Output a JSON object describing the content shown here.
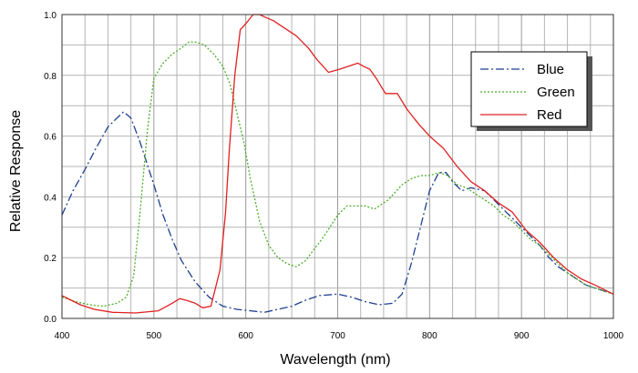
{
  "chart_data": {
    "type": "line",
    "title": "",
    "xlabel": "Wavelength (nm)",
    "ylabel": "Relative Response",
    "xlim": [
      400,
      1000
    ],
    "ylim": [
      0,
      1.0
    ],
    "x_ticks": [
      400,
      500,
      600,
      700,
      800,
      900,
      1000
    ],
    "x_tick_labels": [
      "400",
      "500",
      "600",
      "700",
      "800",
      "900",
      "1000"
    ],
    "y_ticks": [
      0,
      0.2,
      0.4,
      0.6,
      0.8,
      1.0
    ],
    "y_tick_labels": [
      "0.0",
      "0.2",
      "0.4",
      "0.6",
      "0.8",
      "1.0"
    ],
    "grid": true,
    "legend_position": "top-right",
    "series": [
      {
        "name": "Blue",
        "color": "#1f3f8f",
        "dash": "dash-dot",
        "x": [
          400,
          412,
          425,
          437,
          450,
          460,
          467,
          475,
          485,
          500,
          510,
          520,
          530,
          545,
          560,
          575,
          590,
          605,
          620,
          635,
          650,
          665,
          680,
          700,
          715,
          730,
          745,
          760,
          770,
          780,
          790,
          800,
          810,
          818,
          825,
          835,
          845,
          860,
          870,
          880,
          890,
          900,
          910,
          920,
          930,
          940,
          950,
          960,
          970,
          980,
          990,
          1000
        ],
        "y": [
          0.34,
          0.42,
          0.49,
          0.56,
          0.63,
          0.66,
          0.68,
          0.66,
          0.58,
          0.44,
          0.34,
          0.26,
          0.19,
          0.12,
          0.07,
          0.04,
          0.03,
          0.025,
          0.02,
          0.03,
          0.04,
          0.06,
          0.075,
          0.08,
          0.07,
          0.055,
          0.045,
          0.05,
          0.08,
          0.18,
          0.3,
          0.42,
          0.48,
          0.48,
          0.45,
          0.42,
          0.43,
          0.42,
          0.39,
          0.36,
          0.33,
          0.3,
          0.27,
          0.24,
          0.2,
          0.17,
          0.15,
          0.13,
          0.11,
          0.1,
          0.09,
          0.08
        ]
      },
      {
        "name": "Green",
        "color": "#4caf2a",
        "dash": "dotted",
        "x": [
          400,
          415,
          430,
          445,
          460,
          470,
          478,
          485,
          493,
          500,
          510,
          520,
          530,
          538,
          545,
          555,
          565,
          575,
          583,
          590,
          598,
          605,
          615,
          625,
          635,
          645,
          655,
          665,
          675,
          685,
          700,
          710,
          720,
          730,
          740,
          755,
          770,
          780,
          790,
          800,
          810,
          820,
          830,
          840,
          850,
          860,
          870,
          880,
          890,
          900,
          910,
          920,
          930,
          940,
          950,
          960,
          970,
          980,
          990,
          1000
        ],
        "y": [
          0.07,
          0.055,
          0.045,
          0.04,
          0.05,
          0.07,
          0.14,
          0.35,
          0.62,
          0.79,
          0.84,
          0.87,
          0.89,
          0.91,
          0.91,
          0.9,
          0.87,
          0.83,
          0.77,
          0.68,
          0.58,
          0.46,
          0.32,
          0.24,
          0.2,
          0.18,
          0.17,
          0.19,
          0.23,
          0.27,
          0.34,
          0.37,
          0.37,
          0.37,
          0.36,
          0.39,
          0.44,
          0.46,
          0.47,
          0.47,
          0.48,
          0.47,
          0.44,
          0.43,
          0.41,
          0.39,
          0.37,
          0.34,
          0.32,
          0.29,
          0.26,
          0.24,
          0.21,
          0.18,
          0.15,
          0.13,
          0.11,
          0.1,
          0.09,
          0.08
        ]
      },
      {
        "name": "Red",
        "color": "#e02020",
        "dash": "solid",
        "x": [
          400,
          410,
          420,
          435,
          455,
          480,
          505,
          520,
          528,
          535,
          545,
          553,
          562,
          572,
          578,
          582,
          588,
          594,
          600,
          608,
          615,
          622,
          630,
          640,
          655,
          668,
          678,
          690,
          702,
          712,
          722,
          728,
          735,
          742,
          752,
          765,
          775,
          788,
          800,
          815,
          830,
          845,
          860,
          875,
          890,
          905,
          920,
          935,
          950,
          965,
          980,
          1000
        ],
        "y": [
          0.075,
          0.06,
          0.045,
          0.03,
          0.02,
          0.018,
          0.025,
          0.05,
          0.065,
          0.06,
          0.05,
          0.035,
          0.04,
          0.16,
          0.35,
          0.55,
          0.8,
          0.95,
          0.97,
          1.0,
          1.0,
          0.99,
          0.98,
          0.96,
          0.93,
          0.89,
          0.85,
          0.81,
          0.82,
          0.83,
          0.84,
          0.83,
          0.82,
          0.79,
          0.74,
          0.74,
          0.69,
          0.64,
          0.6,
          0.56,
          0.5,
          0.45,
          0.42,
          0.38,
          0.35,
          0.29,
          0.25,
          0.2,
          0.16,
          0.13,
          0.11,
          0.08
        ]
      }
    ]
  }
}
